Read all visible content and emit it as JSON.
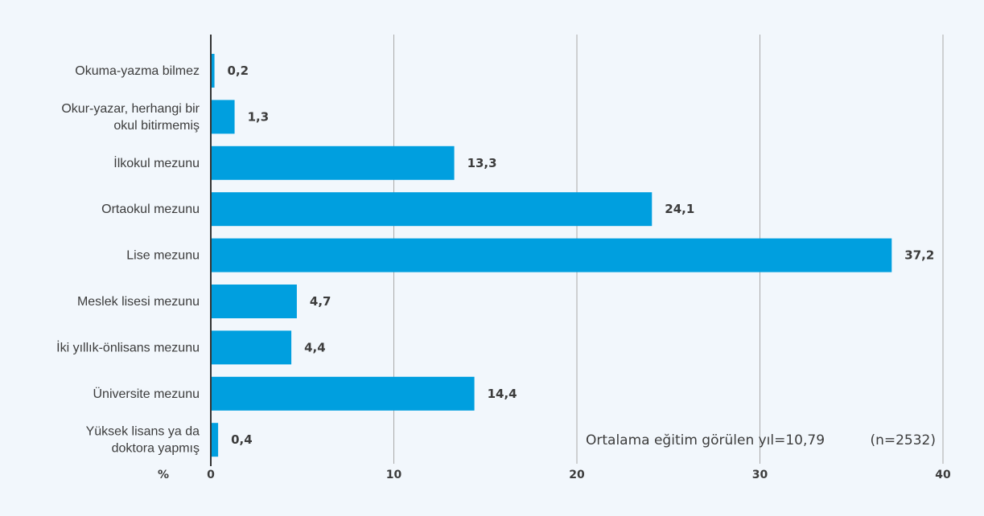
{
  "chart_data": {
    "type": "bar",
    "orientation": "horizontal",
    "categories": [
      "Okuma-yazma bilmez",
      "Okur-yazar, herhangi bir okul bitirmemiş",
      "İlkokul mezunu",
      "Ortaokul mezunu",
      "Lise mezunu",
      "Meslek lisesi mezunu",
      "İki yıllık-önlisans mezunu",
      "Üniversite mezunu",
      "Yüksek lisans ya da doktora yapmış"
    ],
    "category_lines": [
      [
        "Okuma-yazma bilmez"
      ],
      [
        "Okur-yazar, herhangi bir",
        "okul bitirmemiş"
      ],
      [
        "İlkokul mezunu"
      ],
      [
        "Ortaokul mezunu"
      ],
      [
        "Lise mezunu"
      ],
      [
        "Meslek lisesi mezunu"
      ],
      [
        "İki yıllık-önlisans mezunu"
      ],
      [
        "Üniversite mezunu"
      ],
      [
        "Yüksek lisans ya da",
        "doktora yapmış"
      ]
    ],
    "values": [
      0.2,
      1.3,
      13.3,
      24.1,
      37.2,
      4.7,
      4.4,
      14.4,
      0.4
    ],
    "value_labels": [
      "0,2",
      "1,3",
      "13,3",
      "24,1",
      "37,2",
      "4,7",
      "4,4",
      "14,4",
      "0,4"
    ],
    "xlim": [
      0,
      40
    ],
    "xticks": [
      0,
      10,
      20,
      30,
      40
    ],
    "xtick_labels": [
      "0",
      "10",
      "20",
      "30",
      "40"
    ],
    "xlabel": "%",
    "grid": true,
    "bar_color": "#009fdf",
    "grid_color": "#a9a9a9",
    "annotations": [
      "Ortalama eğitim görülen yıl=10,79",
      "(n=2532)"
    ]
  }
}
